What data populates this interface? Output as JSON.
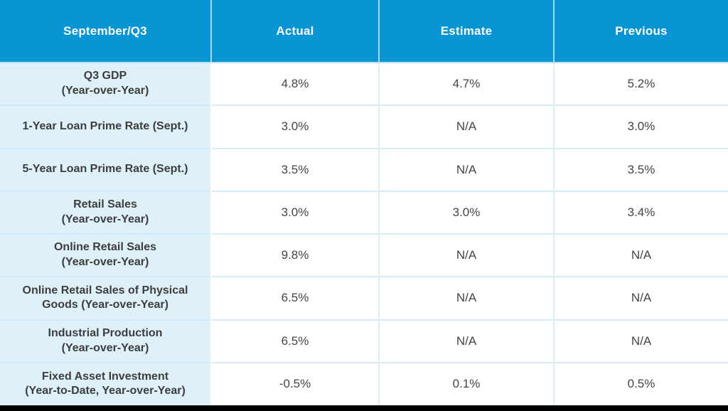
{
  "chart_data": {
    "type": "table",
    "title": "September/Q3",
    "columns": [
      "September/Q3",
      "Actual",
      "Estimate",
      "Previous"
    ],
    "rows": [
      [
        "Q3 GDP (Year-over-Year)",
        "4.8%",
        "4.7%",
        "5.2%"
      ],
      [
        "1-Year Loan Prime Rate (Sept.)",
        "3.0%",
        "N/A",
        "3.0%"
      ],
      [
        "5-Year Loan Prime Rate (Sept.)",
        "3.5%",
        "N/A",
        "3.5%"
      ],
      [
        "Retail Sales (Year-over-Year)",
        "3.0%",
        "3.0%",
        "3.4%"
      ],
      [
        "Online Retail Sales (Year-over-Year)",
        "9.8%",
        "N/A",
        "N/A"
      ],
      [
        "Online Retail Sales of Physical Goods (Year-over-Year)",
        "6.5%",
        "N/A",
        "N/A"
      ],
      [
        "Industrial Production (Year-over-Year)",
        "6.5%",
        "N/A",
        "N/A"
      ],
      [
        "Fixed Asset Investment (Year-to-Date, Year-over-Year)",
        "-0.5%",
        "0.1%",
        "0.5%"
      ]
    ]
  },
  "table": {
    "header": {
      "period": "September/Q3",
      "actual": "Actual",
      "estimate": "Estimate",
      "previous": "Previous"
    },
    "rows": [
      {
        "label": "Q3 GDP\n(Year-over-Year)",
        "actual": "4.8%",
        "estimate": "4.7%",
        "previous": "5.2%"
      },
      {
        "label": "1-Year Loan Prime Rate (Sept.)",
        "actual": "3.0%",
        "estimate": "N/A",
        "previous": "3.0%"
      },
      {
        "label": "5-Year Loan Prime Rate (Sept.)",
        "actual": "3.5%",
        "estimate": "N/A",
        "previous": "3.5%"
      },
      {
        "label": "Retail Sales\n(Year-over-Year)",
        "actual": "3.0%",
        "estimate": "3.0%",
        "previous": "3.4%"
      },
      {
        "label": "Online Retail Sales\n(Year-over-Year)",
        "actual": "9.8%",
        "estimate": "N/A",
        "previous": "N/A"
      },
      {
        "label": "Online Retail Sales of Physical\nGoods (Year-over-Year)",
        "actual": "6.5%",
        "estimate": "N/A",
        "previous": "N/A"
      },
      {
        "label": "Industrial Production\n(Year-over-Year)",
        "actual": "6.5%",
        "estimate": "N/A",
        "previous": "N/A"
      },
      {
        "label": "Fixed Asset Investment\n(Year-to-Date, Year-over-Year)",
        "actual": "-0.5%",
        "estimate": "0.1%",
        "previous": "0.5%"
      }
    ]
  },
  "colors": {
    "header_bg": "#0795d4",
    "header_text": "#ffffff",
    "label_column_bg": "#def0f8",
    "row_divider": "#d5ecf8",
    "header_divider": "#a9dbf2",
    "body_text": "#454545",
    "label_text": "#3d3d3d",
    "bottom_bar": "#000000"
  }
}
